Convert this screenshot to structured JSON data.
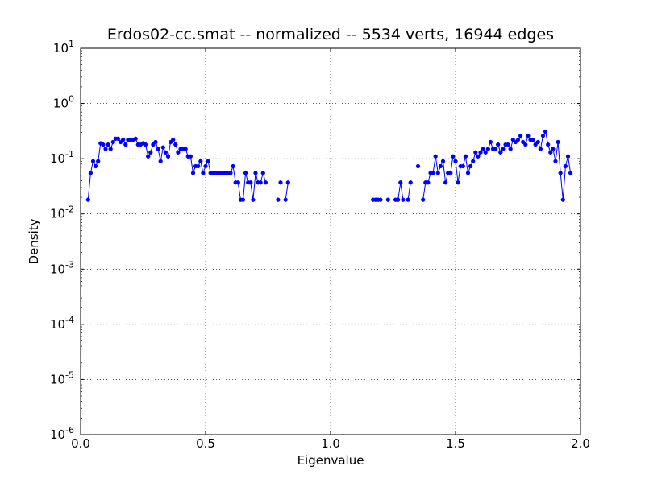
{
  "chart_data": {
    "type": "line",
    "title": "Erdos02-cc.smat -- normalized -- 5534 verts, 16944 edges",
    "xlabel": "Eigenvalue",
    "ylabel": "Density",
    "xlim": [
      0.0,
      2.0
    ],
    "ylim": [
      1e-06,
      10
    ],
    "yscale": "log",
    "grid": true,
    "grid_style": "dotted",
    "x_ticks": [
      "0.0",
      "0.5",
      "1.0",
      "1.5",
      "2.0"
    ],
    "y_ticks": [
      {
        "base": "10",
        "exp": "1"
      },
      {
        "base": "10",
        "exp": "0"
      },
      {
        "base": "10",
        "exp": "-1"
      },
      {
        "base": "10",
        "exp": "-2"
      },
      {
        "base": "10",
        "exp": "-3"
      },
      {
        "base": "10",
        "exp": "-4"
      },
      {
        "base": "10",
        "exp": "-5"
      },
      {
        "base": "10",
        "exp": "-6"
      }
    ],
    "series_color": "#0000ff",
    "series": [
      {
        "segments": [
          [
            [
              0.03,
              0.018
            ],
            [
              0.04,
              0.055
            ],
            [
              0.05,
              0.09
            ],
            [
              0.06,
              0.073
            ],
            [
              0.07,
              0.09
            ],
            [
              0.08,
              0.19
            ],
            [
              0.09,
              0.18
            ],
            [
              0.1,
              0.15
            ],
            [
              0.11,
              0.18
            ],
            [
              0.12,
              0.15
            ],
            [
              0.13,
              0.2
            ],
            [
              0.14,
              0.23
            ],
            [
              0.15,
              0.23
            ],
            [
              0.16,
              0.2
            ],
            [
              0.17,
              0.22
            ],
            [
              0.18,
              0.18
            ],
            [
              0.19,
              0.22
            ],
            [
              0.2,
              0.22
            ],
            [
              0.21,
              0.22
            ],
            [
              0.22,
              0.23
            ],
            [
              0.23,
              0.18
            ],
            [
              0.24,
              0.18
            ],
            [
              0.25,
              0.19
            ],
            [
              0.26,
              0.18
            ],
            [
              0.27,
              0.11
            ],
            [
              0.28,
              0.13
            ],
            [
              0.29,
              0.18
            ],
            [
              0.3,
              0.2
            ],
            [
              0.31,
              0.15
            ],
            [
              0.32,
              0.09
            ],
            [
              0.33,
              0.16
            ],
            [
              0.34,
              0.13
            ],
            [
              0.35,
              0.11
            ],
            [
              0.36,
              0.2
            ],
            [
              0.37,
              0.22
            ],
            [
              0.38,
              0.18
            ],
            [
              0.39,
              0.13
            ],
            [
              0.4,
              0.15
            ],
            [
              0.41,
              0.15
            ],
            [
              0.42,
              0.15
            ],
            [
              0.43,
              0.11
            ],
            [
              0.44,
              0.11
            ],
            [
              0.45,
              0.055
            ],
            [
              0.46,
              0.073
            ],
            [
              0.47,
              0.073
            ],
            [
              0.48,
              0.09
            ],
            [
              0.49,
              0.055
            ],
            [
              0.5,
              0.073
            ],
            [
              0.51,
              0.09
            ],
            [
              0.52,
              0.055
            ],
            [
              0.53,
              0.055
            ],
            [
              0.54,
              0.055
            ],
            [
              0.55,
              0.055
            ],
            [
              0.56,
              0.055
            ],
            [
              0.57,
              0.055
            ],
            [
              0.58,
              0.055
            ],
            [
              0.59,
              0.055
            ],
            [
              0.6,
              0.055
            ],
            [
              0.61,
              0.073
            ],
            [
              0.62,
              0.037
            ],
            [
              0.63,
              0.037
            ],
            [
              0.64,
              0.018
            ],
            [
              0.65,
              0.018
            ],
            [
              0.66,
              0.055
            ],
            [
              0.67,
              0.037
            ],
            [
              0.68,
              0.037
            ],
            [
              0.69,
              0.018
            ],
            [
              0.7,
              0.055
            ],
            [
              0.71,
              0.037
            ],
            [
              0.72,
              0.037
            ],
            [
              0.73,
              0.055
            ],
            [
              0.74,
              0.037
            ]
          ],
          [
            [
              0.79,
              0.018
            ]
          ],
          [
            [
              0.8,
              0.037
            ]
          ],
          [
            [
              0.82,
              0.018
            ],
            [
              0.83,
              0.037
            ]
          ],
          [
            [
              1.17,
              0.018
            ],
            [
              1.18,
              0.018
            ],
            [
              1.19,
              0.018
            ],
            [
              1.2,
              0.018
            ]
          ],
          [
            [
              1.23,
              0.018
            ]
          ],
          [
            [
              1.26,
              0.018
            ],
            [
              1.27,
              0.018
            ],
            [
              1.28,
              0.037
            ],
            [
              1.29,
              0.018
            ]
          ],
          [
            [
              1.31,
              0.018
            ],
            [
              1.32,
              0.037
            ]
          ],
          [
            [
              1.35,
              0.073
            ]
          ],
          [
            [
              1.37,
              0.018
            ],
            [
              1.38,
              0.037
            ],
            [
              1.39,
              0.037
            ],
            [
              1.4,
              0.055
            ],
            [
              1.41,
              0.055
            ],
            [
              1.42,
              0.11
            ],
            [
              1.43,
              0.055
            ],
            [
              1.44,
              0.073
            ],
            [
              1.45,
              0.09
            ],
            [
              1.46,
              0.037
            ],
            [
              1.47,
              0.055
            ],
            [
              1.48,
              0.055
            ],
            [
              1.49,
              0.11
            ],
            [
              1.5,
              0.09
            ],
            [
              1.51,
              0.037
            ],
            [
              1.52,
              0.073
            ],
            [
              1.53,
              0.073
            ],
            [
              1.54,
              0.11
            ],
            [
              1.55,
              0.055
            ],
            [
              1.56,
              0.073
            ],
            [
              1.57,
              0.09
            ],
            [
              1.58,
              0.13
            ],
            [
              1.59,
              0.11
            ],
            [
              1.6,
              0.13
            ],
            [
              1.61,
              0.15
            ],
            [
              1.62,
              0.13
            ],
            [
              1.63,
              0.15
            ],
            [
              1.64,
              0.2
            ],
            [
              1.65,
              0.15
            ],
            [
              1.66,
              0.15
            ],
            [
              1.67,
              0.18
            ],
            [
              1.68,
              0.13
            ],
            [
              1.69,
              0.15
            ],
            [
              1.7,
              0.18
            ],
            [
              1.71,
              0.18
            ],
            [
              1.72,
              0.15
            ],
            [
              1.73,
              0.22
            ],
            [
              1.74,
              0.2
            ],
            [
              1.75,
              0.22
            ],
            [
              1.76,
              0.26
            ],
            [
              1.77,
              0.2
            ],
            [
              1.78,
              0.18
            ],
            [
              1.79,
              0.26
            ],
            [
              1.8,
              0.22
            ],
            [
              1.81,
              0.22
            ],
            [
              1.82,
              0.18
            ],
            [
              1.83,
              0.2
            ],
            [
              1.84,
              0.15
            ],
            [
              1.85,
              0.26
            ],
            [
              1.86,
              0.31
            ],
            [
              1.87,
              0.18
            ],
            [
              1.88,
              0.13
            ],
            [
              1.89,
              0.15
            ],
            [
              1.9,
              0.09
            ],
            [
              1.91,
              0.2
            ],
            [
              1.92,
              0.055
            ],
            [
              1.93,
              0.018
            ],
            [
              1.94,
              0.073
            ],
            [
              1.95,
              0.11
            ],
            [
              1.96,
              0.055
            ]
          ]
        ]
      }
    ]
  }
}
